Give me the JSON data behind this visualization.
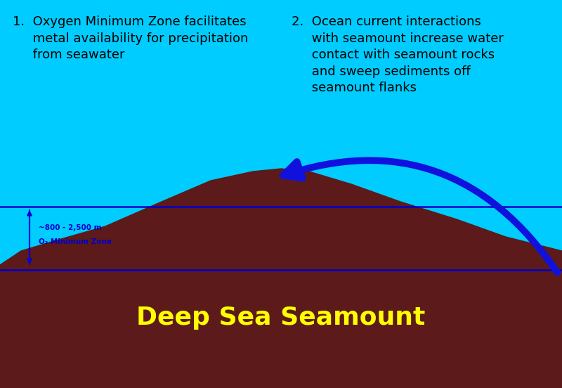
{
  "bg_color": "#00CCFF",
  "seamount_color": "#5C1A1A",
  "line_color": "#0000CC",
  "arrow_color": "#1111DD",
  "text1": "1.  Oxygen Minimum Zone facilitates\n     metal availability for precipitation\n     from seawater",
  "text2": "2.  Ocean current interactions\n     with seamount increase water\n     contact with seamount rocks\n     and sweep sediments off\n     seamount flanks",
  "label_line1": "~800 - 2,500 m",
  "label_line2": "O₂ Minimum Zone",
  "seamount_label": "Deep Sea Seamount",
  "seamount_label_color": "#FFFF00",
  "figsize": [
    8.0,
    5.52
  ],
  "dpi": 100
}
